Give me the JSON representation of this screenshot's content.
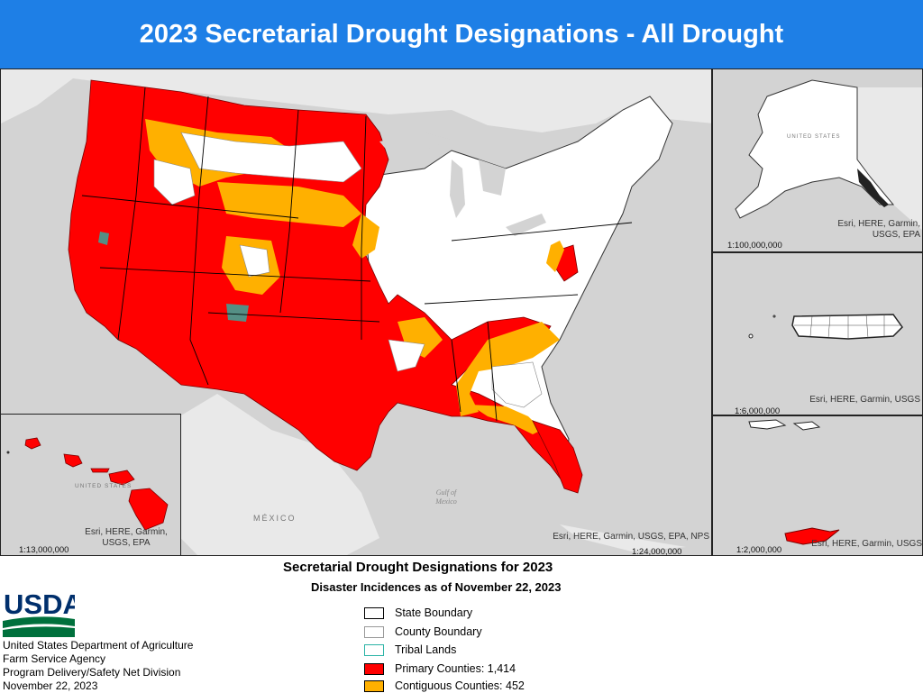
{
  "title": "2023 Secretarial Drought Designations - All Drought",
  "main_map": {
    "credit": "Esri, HERE, Garmin, USGS, EPA, NPS",
    "scale": "1:24,000,000",
    "labels": {
      "mexico": "MÉXICO",
      "gulf": "Gulf of Mexico"
    }
  },
  "alaska": {
    "credit_lines": [
      "Esri, HERE, Garmin,",
      "USGS, EPA"
    ],
    "scale": "1:100,000,000",
    "label": "UNITED STATES"
  },
  "puerto_rico": {
    "credit": "Esri, HERE, Garmin, USGS",
    "scale": "1:6,000,000"
  },
  "usvi": {
    "credit": "Esri, HERE, Garmin, USGS",
    "scale": "1:2,000,000"
  },
  "hawaii": {
    "credit_lines": [
      "Esri, HERE, Garmin,",
      "USGS, EPA"
    ],
    "scale": "1:13,000,000",
    "label": "UNITED STATES"
  },
  "legend": {
    "title": "Secretarial Drought Designations for 2023",
    "subtitle": "Disaster Incidences as of November 22, 2023",
    "items": [
      {
        "label": "State Boundary",
        "color": "#ffffff",
        "border": "#000000"
      },
      {
        "label": "County Boundary",
        "color": "#ffffff",
        "border": "#999999"
      },
      {
        "label": "Tribal Lands",
        "color": "#ffffff",
        "border": "#2ab3a6"
      },
      {
        "label": "Primary Counties: 1,414",
        "color": "#ff0000",
        "border": "#000000"
      },
      {
        "label": "Contiguous Counties: 452",
        "color": "#ffb000",
        "border": "#000000"
      }
    ]
  },
  "agency": {
    "logo_text": "USDA",
    "lines": [
      "United States Department of Agriculture",
      "Farm Service Agency",
      "Program Delivery/Safety Net Division",
      "November 22, 2023"
    ]
  },
  "colors": {
    "primary": "#ff0000",
    "contiguous": "#ffb000",
    "water": "#d3d3d3",
    "land_outside": "#e9e9e9",
    "header": "#1e7fe6"
  }
}
